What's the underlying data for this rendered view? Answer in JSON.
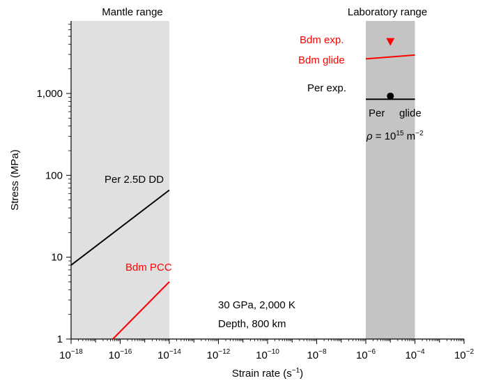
{
  "chart_data": {
    "type": "line",
    "xlabel": "Strain rate (s",
    "xlabel_sup": "−1",
    "xlabel_tail": ")",
    "ylabel": "Stress (MPa)",
    "x_scale": "log",
    "y_scale": "log",
    "xlim": [
      1e-18,
      0.01
    ],
    "ylim": [
      1,
      7000
    ],
    "grid": false,
    "x_ticks": [
      {
        "base": "10",
        "exp": "−18",
        "value": 1e-18
      },
      {
        "base": "10",
        "exp": "−16",
        "value": 1e-16
      },
      {
        "base": "10",
        "exp": "−14",
        "value": 1e-14
      },
      {
        "base": "10",
        "exp": "−12",
        "value": 1e-12
      },
      {
        "base": "10",
        "exp": "−10",
        "value": 1e-10
      },
      {
        "base": "10",
        "exp": "−8",
        "value": 1e-08
      },
      {
        "base": "10",
        "exp": "−6",
        "value": 1e-06
      },
      {
        "base": "10",
        "exp": "−4",
        "value": 0.0001
      },
      {
        "base": "10",
        "exp": "−2",
        "value": 0.01
      }
    ],
    "y_ticks": [
      {
        "label": "1",
        "value": 1
      },
      {
        "label": "10",
        "value": 10
      },
      {
        "label": "100",
        "value": 100
      },
      {
        "label": "1,000",
        "value": 1000
      }
    ],
    "bands": [
      {
        "label": "Mantle range",
        "x": [
          1e-18,
          1e-14
        ],
        "color": "#e0e0e0"
      },
      {
        "label": "Laboratory range",
        "x": [
          1e-06,
          0.0001
        ],
        "color": "#c4c4c4"
      }
    ],
    "series": [
      {
        "name": "Per 2.5D DD",
        "color": "#000000",
        "x": [
          1e-18,
          1e-14
        ],
        "y": [
          8,
          66
        ]
      },
      {
        "name": "Bdm PCC",
        "color": "#ff0000",
        "x": [
          5e-17,
          1e-14
        ],
        "y": [
          1,
          5
        ]
      },
      {
        "name": "Bdm glide",
        "color": "#ff0000",
        "x": [
          1e-06,
          0.0001
        ],
        "y": [
          2650,
          2950
        ]
      },
      {
        "name": "Per glide",
        "color": "#000000",
        "x": [
          1e-06,
          0.0001
        ],
        "y": [
          850,
          850
        ]
      }
    ],
    "markers": [
      {
        "name": "Bdm exp.",
        "shape": "triangle-down",
        "color": "#ff0000",
        "x": 1e-05,
        "y": 4300
      },
      {
        "name": "Per exp.",
        "shape": "circle",
        "color": "#000000",
        "x": 1e-05,
        "y": 930
      }
    ],
    "annotations": {
      "bdm_exp": "Bdm exp.",
      "bdm_glide": "Bdm glide",
      "per_exp": "Per exp.",
      "per": "Per",
      "glide": "glide",
      "per_dd": "Per 2.5D DD",
      "bdm_pcc": "Bdm PCC",
      "rho_symbol": "ρ",
      "rho_eq": " = 10",
      "rho_exp": "15",
      "rho_unit": " m",
      "rho_unit_exp": "−2",
      "conditions": "30 GPa, 2,000 K",
      "depth": "Depth, 800 km"
    },
    "colors": {
      "black": "#000000",
      "red": "#ff0000"
    }
  }
}
